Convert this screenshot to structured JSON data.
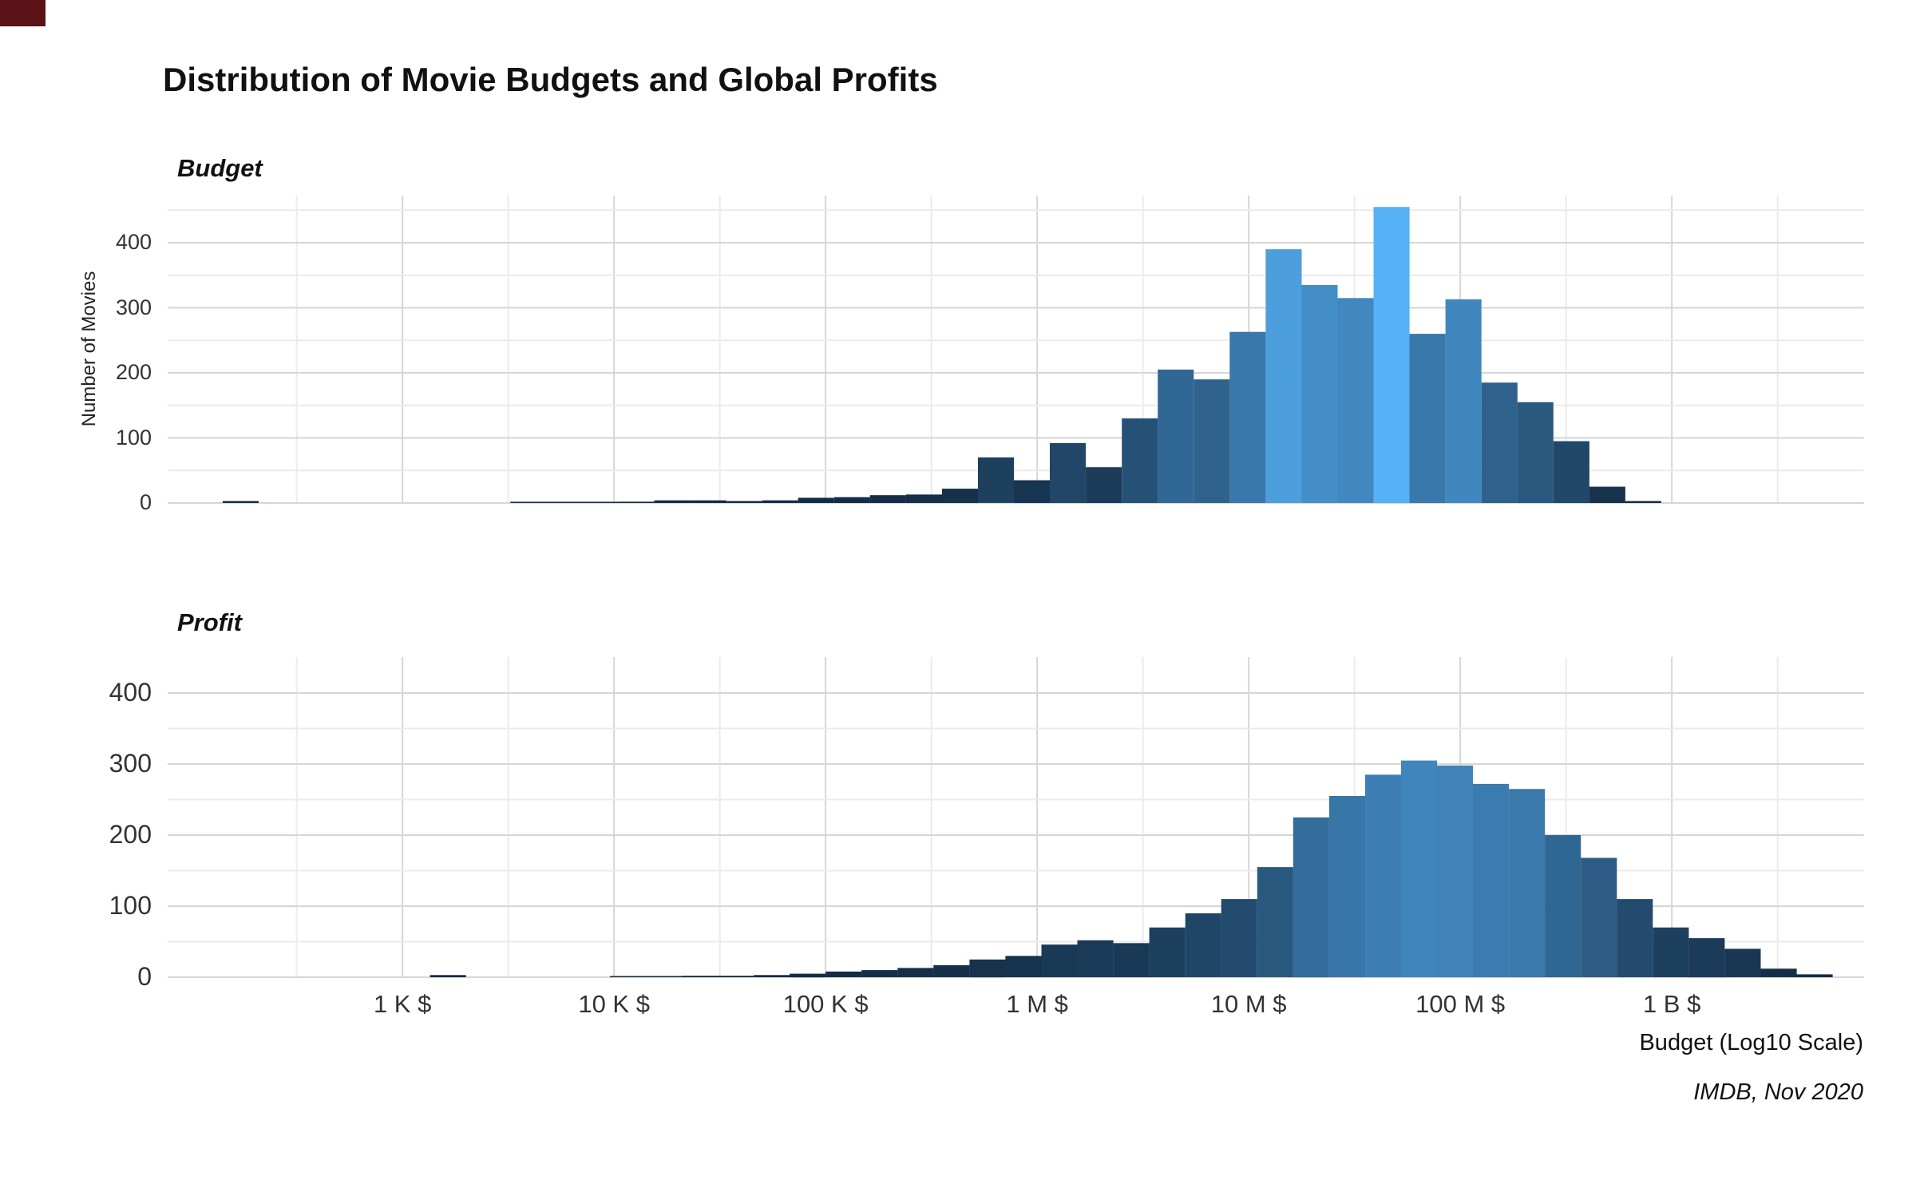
{
  "title": "Distribution of Movie Budgets and Global Profits",
  "panels": [
    {
      "label": "Budget"
    },
    {
      "label": "Profit"
    }
  ],
  "ylabel": "Number of Movies",
  "caption": "Budget (Log10 Scale)",
  "source_note": "IMDB, Nov 2020",
  "colors": {
    "fill_low": "#132B43",
    "fill_high": "#56B1F7",
    "grid_major": "#d6d6d6",
    "grid_minor": "#ebebeb",
    "corner_marker": "#5a1216"
  },
  "chart_data": [
    {
      "type": "bar",
      "name": "Budget",
      "x_scale": "log10",
      "xlabel": "Budget (Log10 Scale)",
      "ylabel": "Number of Movies",
      "xlim_log10": [
        1.89,
        9.89
      ],
      "ylim": [
        0,
        470
      ],
      "bin_width_log10": 0.17,
      "grid": true,
      "legend": "none",
      "y_ticks": [
        0,
        100,
        200,
        300,
        400
      ],
      "x_ticks": [
        {
          "log10": 3,
          "label": "1 K $"
        },
        {
          "log10": 4,
          "label": "10 K $"
        },
        {
          "log10": 5,
          "label": "100 K $"
        },
        {
          "log10": 6,
          "label": "1 M $"
        },
        {
          "log10": 7,
          "label": "10 M $"
        },
        {
          "log10": 8,
          "label": "100 M $"
        },
        {
          "log10": 9,
          "label": "1 B $"
        }
      ],
      "bars": [
        [
          2.235,
          3
        ],
        [
          3.595,
          1
        ],
        [
          3.765,
          1
        ],
        [
          3.935,
          1
        ],
        [
          4.105,
          2
        ],
        [
          4.275,
          4
        ],
        [
          4.445,
          4
        ],
        [
          4.615,
          3
        ],
        [
          4.785,
          4
        ],
        [
          4.955,
          8
        ],
        [
          5.125,
          9
        ],
        [
          5.295,
          12
        ],
        [
          5.465,
          13
        ],
        [
          5.635,
          22
        ],
        [
          5.805,
          70
        ],
        [
          5.975,
          35
        ],
        [
          6.145,
          92
        ],
        [
          6.315,
          55
        ],
        [
          6.485,
          130
        ],
        [
          6.655,
          205
        ],
        [
          6.825,
          190
        ],
        [
          6.995,
          263
        ],
        [
          7.165,
          390
        ],
        [
          7.335,
          335
        ],
        [
          7.505,
          315
        ],
        [
          7.675,
          455
        ],
        [
          7.845,
          260
        ],
        [
          8.015,
          313
        ],
        [
          8.185,
          185
        ],
        [
          8.355,
          155
        ],
        [
          8.525,
          95
        ],
        [
          8.695,
          25
        ],
        [
          8.865,
          3
        ]
      ]
    },
    {
      "type": "bar",
      "name": "Profit",
      "x_scale": "log10",
      "xlabel": "Budget (Log10 Scale)",
      "ylabel": "Number of Movies",
      "xlim_log10": [
        1.89,
        9.89
      ],
      "ylim": [
        0,
        450
      ],
      "bin_width_log10": 0.17,
      "grid": true,
      "legend": "none",
      "y_ticks": [
        0,
        100,
        200,
        300,
        400
      ],
      "x_ticks": [
        {
          "log10": 3,
          "label": "1 K $"
        },
        {
          "log10": 4,
          "label": "10 K $"
        },
        {
          "log10": 5,
          "label": "100 K $"
        },
        {
          "log10": 6,
          "label": "1 M $"
        },
        {
          "log10": 7,
          "label": "10 M $"
        },
        {
          "log10": 8,
          "label": "100 M $"
        },
        {
          "log10": 9,
          "label": "1 B $"
        }
      ],
      "bars": [
        [
          3.215,
          3
        ],
        [
          4.065,
          1
        ],
        [
          4.235,
          1
        ],
        [
          4.405,
          2
        ],
        [
          4.575,
          2
        ],
        [
          4.745,
          3
        ],
        [
          4.915,
          5
        ],
        [
          5.085,
          8
        ],
        [
          5.255,
          10
        ],
        [
          5.425,
          13
        ],
        [
          5.595,
          17
        ],
        [
          5.765,
          25
        ],
        [
          5.935,
          30
        ],
        [
          6.105,
          46
        ],
        [
          6.275,
          52
        ],
        [
          6.445,
          48
        ],
        [
          6.615,
          70
        ],
        [
          6.785,
          90
        ],
        [
          6.955,
          110
        ],
        [
          7.125,
          155
        ],
        [
          7.295,
          225
        ],
        [
          7.465,
          255
        ],
        [
          7.635,
          285
        ],
        [
          7.805,
          305
        ],
        [
          7.975,
          298
        ],
        [
          8.145,
          272
        ],
        [
          8.315,
          265
        ],
        [
          8.485,
          200
        ],
        [
          8.655,
          168
        ],
        [
          8.825,
          110
        ],
        [
          8.995,
          70
        ],
        [
          9.165,
          55
        ],
        [
          9.335,
          40
        ],
        [
          9.505,
          12
        ],
        [
          9.675,
          4
        ]
      ]
    }
  ]
}
